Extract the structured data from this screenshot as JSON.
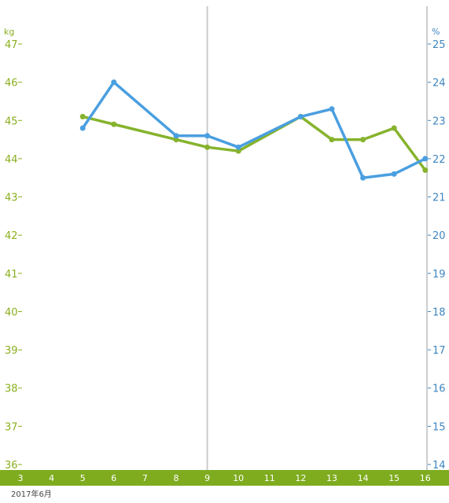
{
  "chart_data": {
    "type": "line",
    "x_month_label": "2017年6月",
    "x": [
      3,
      4,
      5,
      6,
      7,
      8,
      9,
      10,
      11,
      12,
      13,
      14,
      15,
      16
    ],
    "y_left": {
      "unit": "kg",
      "ylim": [
        36,
        47
      ],
      "ticks": [
        36,
        37,
        38,
        39,
        40,
        41,
        42,
        43,
        44,
        45,
        46,
        47
      ]
    },
    "y_right": {
      "unit": "%",
      "ylim": [
        14,
        25
      ],
      "ticks": [
        14,
        15,
        16,
        17,
        18,
        19,
        20,
        21,
        22,
        23,
        24,
        25
      ]
    },
    "highlight_x": 9,
    "series": [
      {
        "axis": "left",
        "color": "#86b32d",
        "points": [
          [
            5,
            45.1
          ],
          [
            6,
            44.9
          ],
          [
            8,
            44.5
          ],
          [
            9,
            44.3
          ],
          [
            10,
            44.2
          ],
          [
            12,
            45.1
          ],
          [
            13,
            44.5
          ],
          [
            14,
            44.5
          ],
          [
            15,
            44.8
          ],
          [
            16,
            43.7
          ]
        ]
      },
      {
        "axis": "right",
        "color": "#4a9fe0",
        "points": [
          [
            5,
            22.8
          ],
          [
            6,
            24.0
          ],
          [
            8,
            22.6
          ],
          [
            9,
            22.6
          ],
          [
            10,
            22.3
          ],
          [
            12,
            23.1
          ],
          [
            13,
            23.3
          ],
          [
            14,
            21.5
          ],
          [
            15,
            21.6
          ],
          [
            16,
            22.0
          ]
        ]
      }
    ],
    "grid": false,
    "legend": "none"
  },
  "colors": {
    "left_axis": "#8aaf1e",
    "right_axis": "#3f86c0",
    "x_band": "#7fac1f",
    "marker_line": "#cccccc"
  }
}
